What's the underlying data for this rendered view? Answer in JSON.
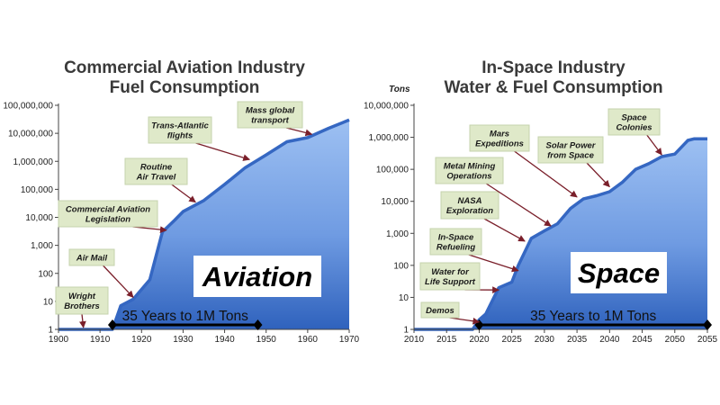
{
  "chart_data": [
    {
      "type": "area",
      "title_lines": [
        "Commercial Aviation Industry",
        "Fuel Consumption"
      ],
      "unit_label": "",
      "xlim": [
        1900,
        1970
      ],
      "x_ticks": [
        "1900",
        "1910",
        "1920",
        "1930",
        "1940",
        "1950",
        "1960",
        "1970"
      ],
      "ylim": [
        1,
        100000000
      ],
      "log_scale": true,
      "y_ticks": [
        "1",
        "10",
        "100",
        "1,000",
        "10,000",
        "100,000",
        "1,000,000",
        "10,000,000",
        "100,000,000"
      ],
      "series": [
        {
          "x": [
            1900,
            1913,
            1915,
            1918,
            1922,
            1925,
            1928,
            1930,
            1935,
            1940,
            1945,
            1950,
            1955,
            1960,
            1965,
            1970
          ],
          "y": [
            1,
            1,
            7,
            12,
            60,
            3000,
            8000,
            16000,
            40000,
            150000,
            600000,
            1700000,
            5000000,
            7000000,
            15000000,
            30000000
          ]
        }
      ],
      "overlay_label": "Aviation",
      "span_label": "35 Years to 1M Tons",
      "span_range": [
        1913,
        1948
      ],
      "annotations": [
        {
          "lines": [
            "Wright",
            "Brothers"
          ],
          "x": 1906,
          "y": 1
        },
        {
          "lines": [
            "Air Mail"
          ],
          "x": 1918,
          "y": 12
        },
        {
          "lines": [
            "Commercial Aviation",
            "Legislation"
          ],
          "x": 1926,
          "y": 3000
        },
        {
          "lines": [
            "Routine",
            "Air Travel"
          ],
          "x": 1933,
          "y": 30000
        },
        {
          "lines": [
            "Trans-Atlantic",
            "flights"
          ],
          "x": 1946,
          "y": 1000000
        },
        {
          "lines": [
            "Mass global",
            "transport"
          ],
          "x": 1961,
          "y": 8000000
        }
      ]
    },
    {
      "type": "area",
      "title_lines": [
        "In-Space Industry",
        "Water & Fuel Consumption"
      ],
      "unit_label": "Tons",
      "xlim": [
        2010,
        2055
      ],
      "x_ticks": [
        "2010",
        "2015",
        "2020",
        "2025",
        "2030",
        "2035",
        "2040",
        "2045",
        "2050",
        "2055"
      ],
      "ylim": [
        1,
        10000000
      ],
      "log_scale": true,
      "y_ticks": [
        "1",
        "10",
        "100",
        "1,000",
        "10,000",
        "100,000",
        "1,000,000",
        "10,000,000"
      ],
      "series": [
        {
          "x": [
            2010,
            2019,
            2020,
            2021,
            2023,
            2025,
            2026,
            2028,
            2030,
            2032,
            2034,
            2036,
            2038,
            2040,
            2042,
            2044,
            2046,
            2048,
            2050,
            2052,
            2053,
            2055
          ],
          "y": [
            1,
            1,
            2,
            3,
            20,
            30,
            100,
            700,
            1200,
            2000,
            6000,
            12000,
            15000,
            20000,
            40000,
            100000,
            150000,
            250000,
            300000,
            800000,
            900000,
            900000
          ]
        }
      ],
      "overlay_label": "Space",
      "span_label": "35 Years to 1M Tons",
      "span_range": [
        2020,
        2055
      ],
      "annotations": [
        {
          "lines": [
            "Demos"
          ],
          "x": 2020,
          "y": 1.5
        },
        {
          "lines": [
            "Water for",
            "Life Support"
          ],
          "x": 2023,
          "y": 15
        },
        {
          "lines": [
            "In-Space",
            "Refueling"
          ],
          "x": 2026,
          "y": 60
        },
        {
          "lines": [
            "NASA",
            "Exploration"
          ],
          "x": 2027,
          "y": 500
        },
        {
          "lines": [
            "Metal Mining",
            "Operations"
          ],
          "x": 2031,
          "y": 1500
        },
        {
          "lines": [
            "Mars",
            "Expeditions"
          ],
          "x": 2035,
          "y": 12000
        },
        {
          "lines": [
            "Solar Power",
            "from Space"
          ],
          "x": 2040,
          "y": 25000
        },
        {
          "lines": [
            "Space",
            "Colonies"
          ],
          "x": 2048,
          "y": 250000
        }
      ]
    }
  ]
}
